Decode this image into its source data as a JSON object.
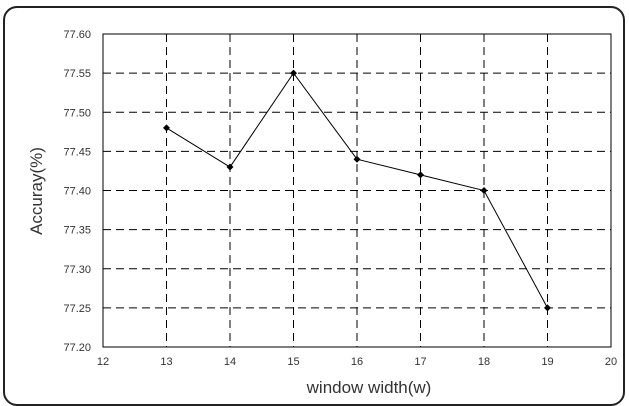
{
  "chart_data": {
    "type": "line",
    "xlabel": "window width(w)",
    "ylabel": "Accuray(%)",
    "xlim": [
      12,
      20
    ],
    "ylim": [
      77.2,
      77.6
    ],
    "x_ticks": [
      "12",
      "13",
      "14",
      "15",
      "16",
      "17",
      "18",
      "19",
      "20"
    ],
    "y_ticks": [
      "77.20",
      "77.25",
      "77.30",
      "77.35",
      "77.40",
      "77.45",
      "77.50",
      "77.55",
      "77.60"
    ],
    "grid": true,
    "series": [
      {
        "x": [
          13,
          14,
          15,
          16,
          17,
          18,
          19
        ],
        "y": [
          77.48,
          77.43,
          77.55,
          77.44,
          77.42,
          77.4,
          77.25
        ]
      }
    ]
  }
}
